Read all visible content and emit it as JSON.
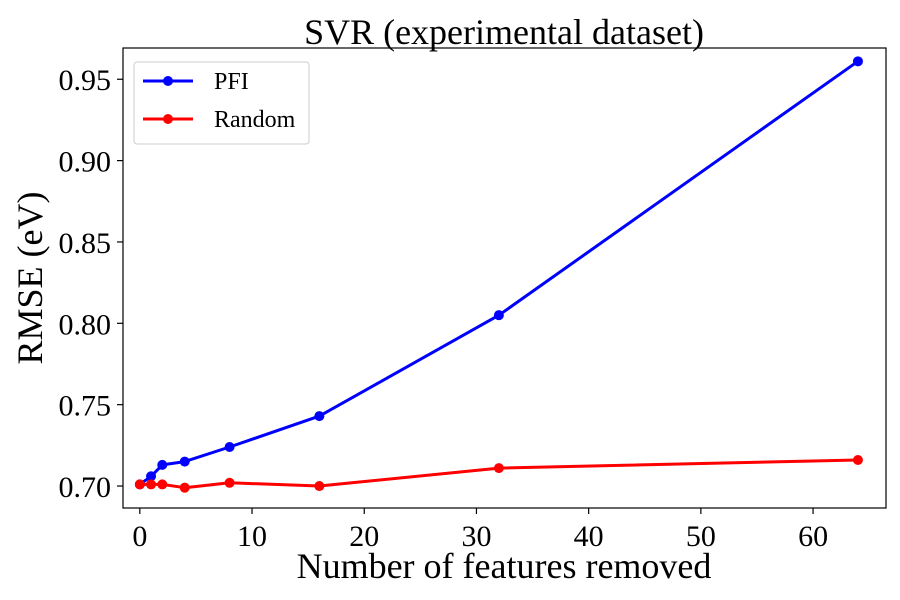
{
  "chart_data": {
    "type": "line",
    "title": "SVR (experimental dataset)",
    "xlabel": "Number of features removed",
    "ylabel": "RMSE (eV)",
    "xlim": [
      -1.5,
      66.5
    ],
    "ylim": [
      0.6865,
      0.9692
    ],
    "xticks": [
      0,
      10,
      20,
      30,
      40,
      50,
      60
    ],
    "yticks": [
      0.7,
      0.75,
      0.8,
      0.85,
      0.9,
      0.95
    ],
    "xtick_labels": [
      "0",
      "10",
      "20",
      "30",
      "40",
      "50",
      "60"
    ],
    "ytick_labels": [
      "0.70",
      "0.75",
      "0.80",
      "0.85",
      "0.90",
      "0.95"
    ],
    "grid": false,
    "legend_position": "top-left",
    "series": [
      {
        "name": "PFI",
        "color": "#0000ff",
        "x": [
          0,
          1,
          2,
          4,
          8,
          16,
          32,
          64
        ],
        "y": [
          0.701,
          0.706,
          0.713,
          0.715,
          0.724,
          0.743,
          0.805,
          0.961
        ]
      },
      {
        "name": "Random",
        "color": "#ff0000",
        "x": [
          0,
          1,
          2,
          4,
          8,
          16,
          32,
          64
        ],
        "y": [
          0.701,
          0.701,
          0.701,
          0.699,
          0.702,
          0.7,
          0.711,
          0.716
        ]
      }
    ]
  }
}
